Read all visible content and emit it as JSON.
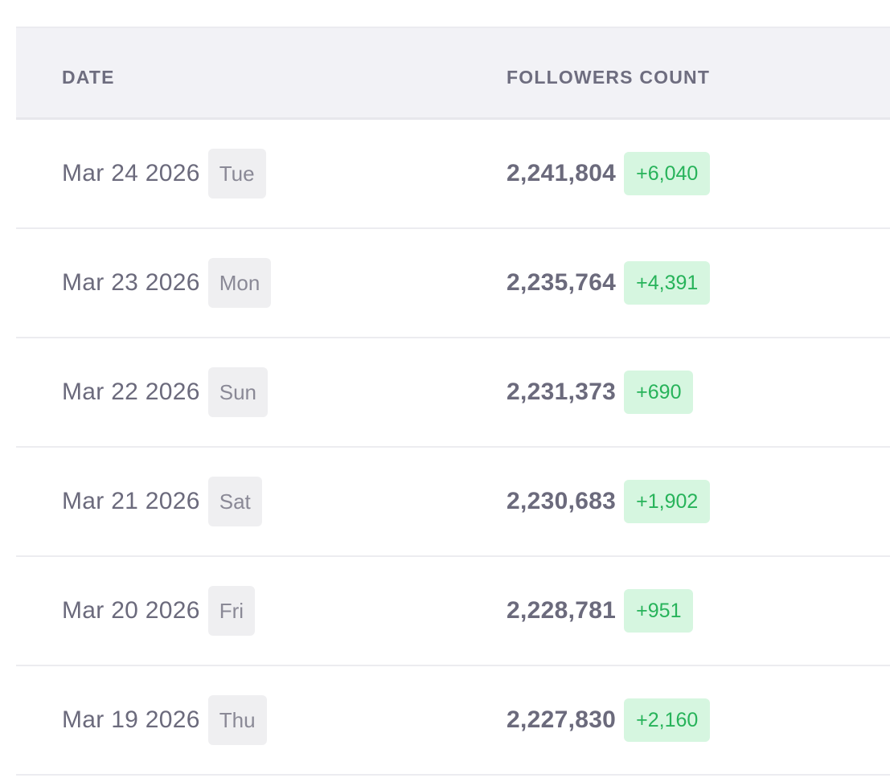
{
  "header": {
    "date_label": "DATE",
    "count_label": "FOLLOWERS COUNT"
  },
  "rows": [
    {
      "date": "Mar 24 2026",
      "day": "Tue",
      "count": "2,241,804",
      "delta": "+6,040"
    },
    {
      "date": "Mar 23 2026",
      "day": "Mon",
      "count": "2,235,764",
      "delta": "+4,391"
    },
    {
      "date": "Mar 22 2026",
      "day": "Sun",
      "count": "2,231,373",
      "delta": "+690"
    },
    {
      "date": "Mar 21 2026",
      "day": "Sat",
      "count": "2,230,683",
      "delta": "+1,902"
    },
    {
      "date": "Mar 20 2026",
      "day": "Fri",
      "count": "2,228,781",
      "delta": "+951"
    },
    {
      "date": "Mar 19 2026",
      "day": "Thu",
      "count": "2,227,830",
      "delta": "+2,160"
    }
  ],
  "colors": {
    "header_bg": "#f2f2f6",
    "text": "#6b6a7c",
    "day_badge_bg": "#efeff1",
    "delta_bg": "#d6f6e0",
    "delta_text": "#27b35a"
  }
}
